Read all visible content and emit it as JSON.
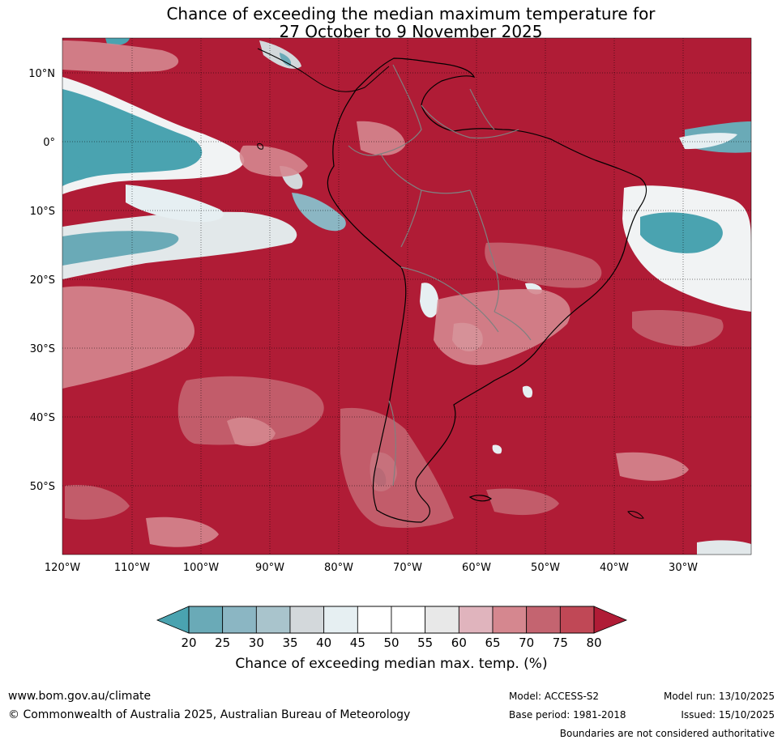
{
  "title": {
    "line1": "Chance of exceeding the median maximum temperature for",
    "line2": "27 October to 9 November 2025"
  },
  "map": {
    "lat_labels": [
      "10°N",
      "0°",
      "10°S",
      "20°S",
      "30°S",
      "40°S",
      "50°S"
    ],
    "lon_labels": [
      "120°W",
      "110°W",
      "100°W",
      "90°W",
      "80°W",
      "70°W",
      "60°W",
      "50°W",
      "40°W",
      "30°W"
    ],
    "colors": {
      "dominant": "#b01c36",
      "land_border": "#000000",
      "country_border": "#808080"
    }
  },
  "colorbar": {
    "label": "Chance of exceeding median max. temp. (%)",
    "ticks": [
      "20",
      "25",
      "30",
      "35",
      "40",
      "45",
      "50",
      "55",
      "60",
      "65",
      "70",
      "75",
      "80"
    ],
    "under_color": "#4aa3b0",
    "over_color": "#b01c36",
    "bin_colors": [
      "#6aaab7",
      "#8bb6c3",
      "#a9c4cc",
      "#d3d8db",
      "#e6eff2",
      "#ffffff",
      "#ffffff",
      "#e8e8e8",
      "#e0b4bd",
      "#d5878f",
      "#c46470",
      "#c04856"
    ]
  },
  "footer": {
    "website": "www.bom.gov.au/climate",
    "copyright": "© Commonwealth of Australia 2025, Australian Bureau of Meteorology",
    "model": "Model: ACCESS-S2",
    "base_period": "Base period: 1981-2018",
    "model_run": "Model run: 13/10/2025",
    "issued": "Issued: 15/10/2025",
    "disclaimer": "Boundaries are not considered authoritative"
  }
}
